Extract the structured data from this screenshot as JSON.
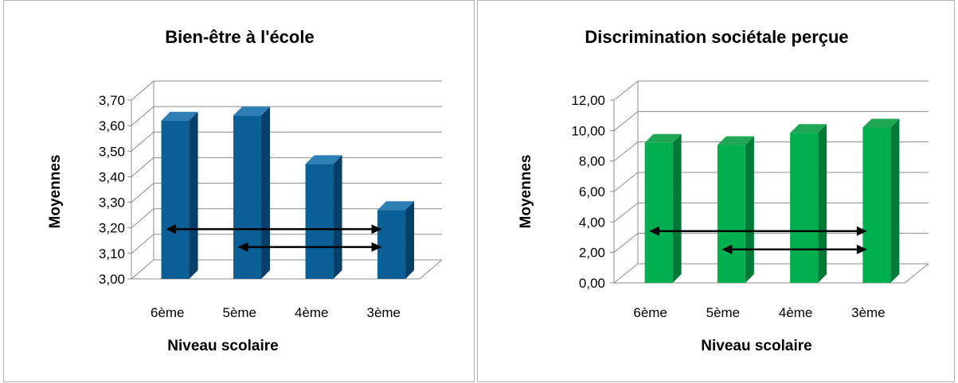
{
  "chart_data": [
    {
      "type": "bar",
      "title": "Bien-être à l'école",
      "xlabel": "Niveau scolaire",
      "ylabel": "Moyennes",
      "categories": [
        "6ème",
        "5ème",
        "4ème",
        "3ème"
      ],
      "values": [
        3.62,
        3.64,
        3.45,
        3.27
      ],
      "ylim": [
        3.0,
        3.7
      ],
      "yticks": [
        "3,00",
        "3,10",
        "3,20",
        "3,30",
        "3,40",
        "3,50",
        "3,60",
        "3,70"
      ],
      "bar_color": "#0a5f96",
      "bar_side_color": "#06406a",
      "bar_top_color": "#2e7fb5",
      "grid": true,
      "annotations": [
        {
          "from": "6ème",
          "to": "3ème",
          "y": 3.195
        },
        {
          "from": "5ème",
          "to": "3ème",
          "y": 3.125
        }
      ]
    },
    {
      "type": "bar",
      "title": "Discrimination sociétale perçue",
      "xlabel": "Niveau scolaire",
      "ylabel": "Moyennes",
      "categories": [
        "6ème",
        "5ème",
        "4ème",
        "3ème"
      ],
      "values": [
        9.2,
        9.05,
        9.85,
        10.2
      ],
      "ylim": [
        0,
        12
      ],
      "yticks": [
        "0,00",
        "2,00",
        "4,00",
        "6,00",
        "8,00",
        "10,00",
        "12,00"
      ],
      "bar_color": "#00b050",
      "bar_side_color": "#007a36",
      "bar_top_color": "#1fa755",
      "grid": true,
      "annotations": [
        {
          "from": "6ème",
          "to": "3ème",
          "y": 3.4
        },
        {
          "from": "5ème",
          "to": "3ème",
          "y": 2.2
        }
      ]
    }
  ]
}
